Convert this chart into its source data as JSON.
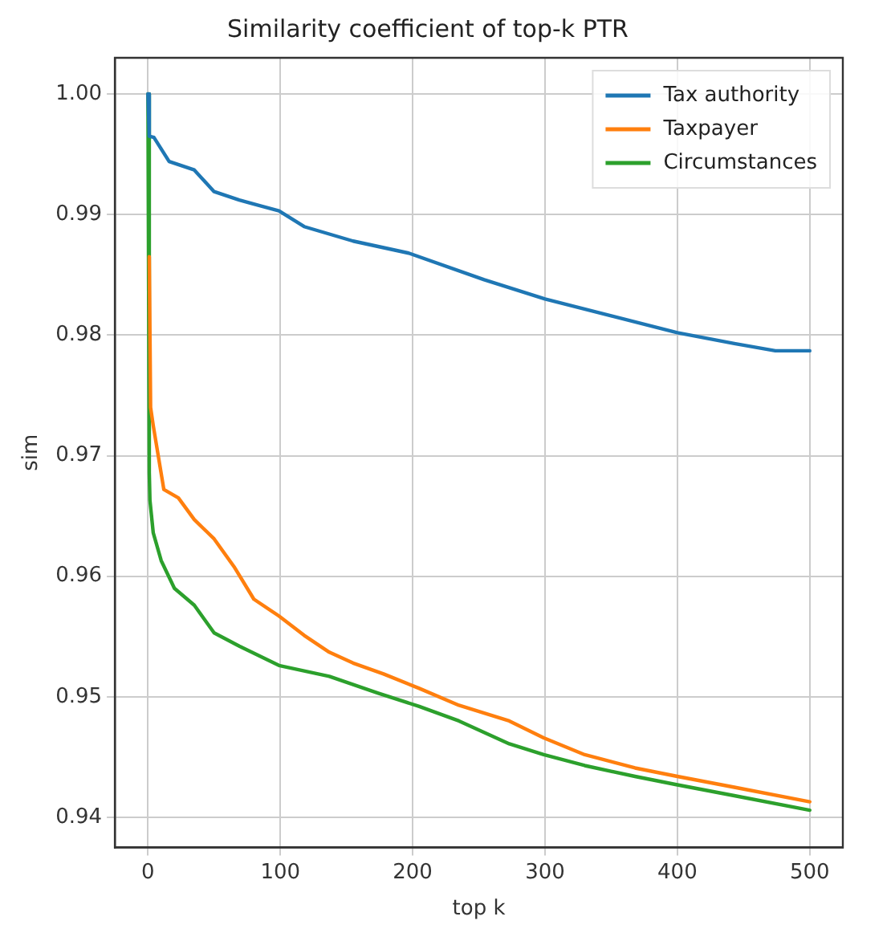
{
  "chart_data": {
    "type": "line",
    "title": "Similarity coefficient of top-k PTR",
    "xlabel": "top k",
    "ylabel": "sim",
    "xlim": [
      -25,
      525
    ],
    "xticks": [
      0,
      100,
      200,
      300,
      400,
      500
    ],
    "ylim": [
      0.9375,
      1.003
    ],
    "yticks": [
      0.94,
      0.95,
      0.96,
      0.97,
      0.98,
      0.99,
      {
        "value": 1.0,
        "label": "1.00"
      }
    ],
    "grid": true,
    "legend": "top right",
    "marker": "none",
    "line_style": "solid",
    "series": [
      {
        "name": "Tax authority",
        "color": "#1f77b4",
        "x": [
          0,
          1,
          4.5,
          16,
          35,
          50,
          69,
          99,
          118,
          155,
          197,
          254,
          300,
          350,
          400,
          443,
          474,
          500
        ],
        "values": [
          1.0,
          0.9965,
          0.9964,
          0.9944,
          0.9937,
          0.9919,
          0.9912,
          0.9903,
          0.989,
          0.9878,
          0.9868,
          0.9846,
          0.983,
          0.9816,
          0.9802,
          0.9793,
          0.9787,
          0.9787
        ]
      },
      {
        "name": "Taxpayer",
        "color": "#ff7f0e",
        "x": [
          1,
          2,
          4,
          12,
          23,
          35,
          50,
          65,
          80,
          99,
          118,
          137,
          155,
          178,
          205,
          235,
          273,
          299,
          330,
          368,
          400,
          443,
          500
        ],
        "values": [
          0.9865,
          0.974,
          0.9725,
          0.9672,
          0.9665,
          0.9647,
          0.9631,
          0.9608,
          0.9581,
          0.9567,
          0.9551,
          0.9537,
          0.9528,
          0.9519,
          0.9507,
          0.9493,
          0.948,
          0.9466,
          0.9452,
          0.9441,
          0.9434,
          0.9425,
          0.9413
        ]
      },
      {
        "name": "Circumstances",
        "color": "#2ca02c",
        "x": [
          0,
          1,
          1.5,
          4,
          10,
          20,
          35,
          50,
          69,
          99,
          137,
          174,
          205,
          235,
          273,
          299,
          330,
          368,
          400,
          443,
          500
        ],
        "values": [
          1.0,
          0.9686,
          0.9663,
          0.9636,
          0.9613,
          0.959,
          0.9576,
          0.9553,
          0.9542,
          0.9526,
          0.9517,
          0.9503,
          0.9492,
          0.948,
          0.9461,
          0.9452,
          0.9443,
          0.9434,
          0.9427,
          0.9418,
          0.9406
        ]
      }
    ]
  }
}
